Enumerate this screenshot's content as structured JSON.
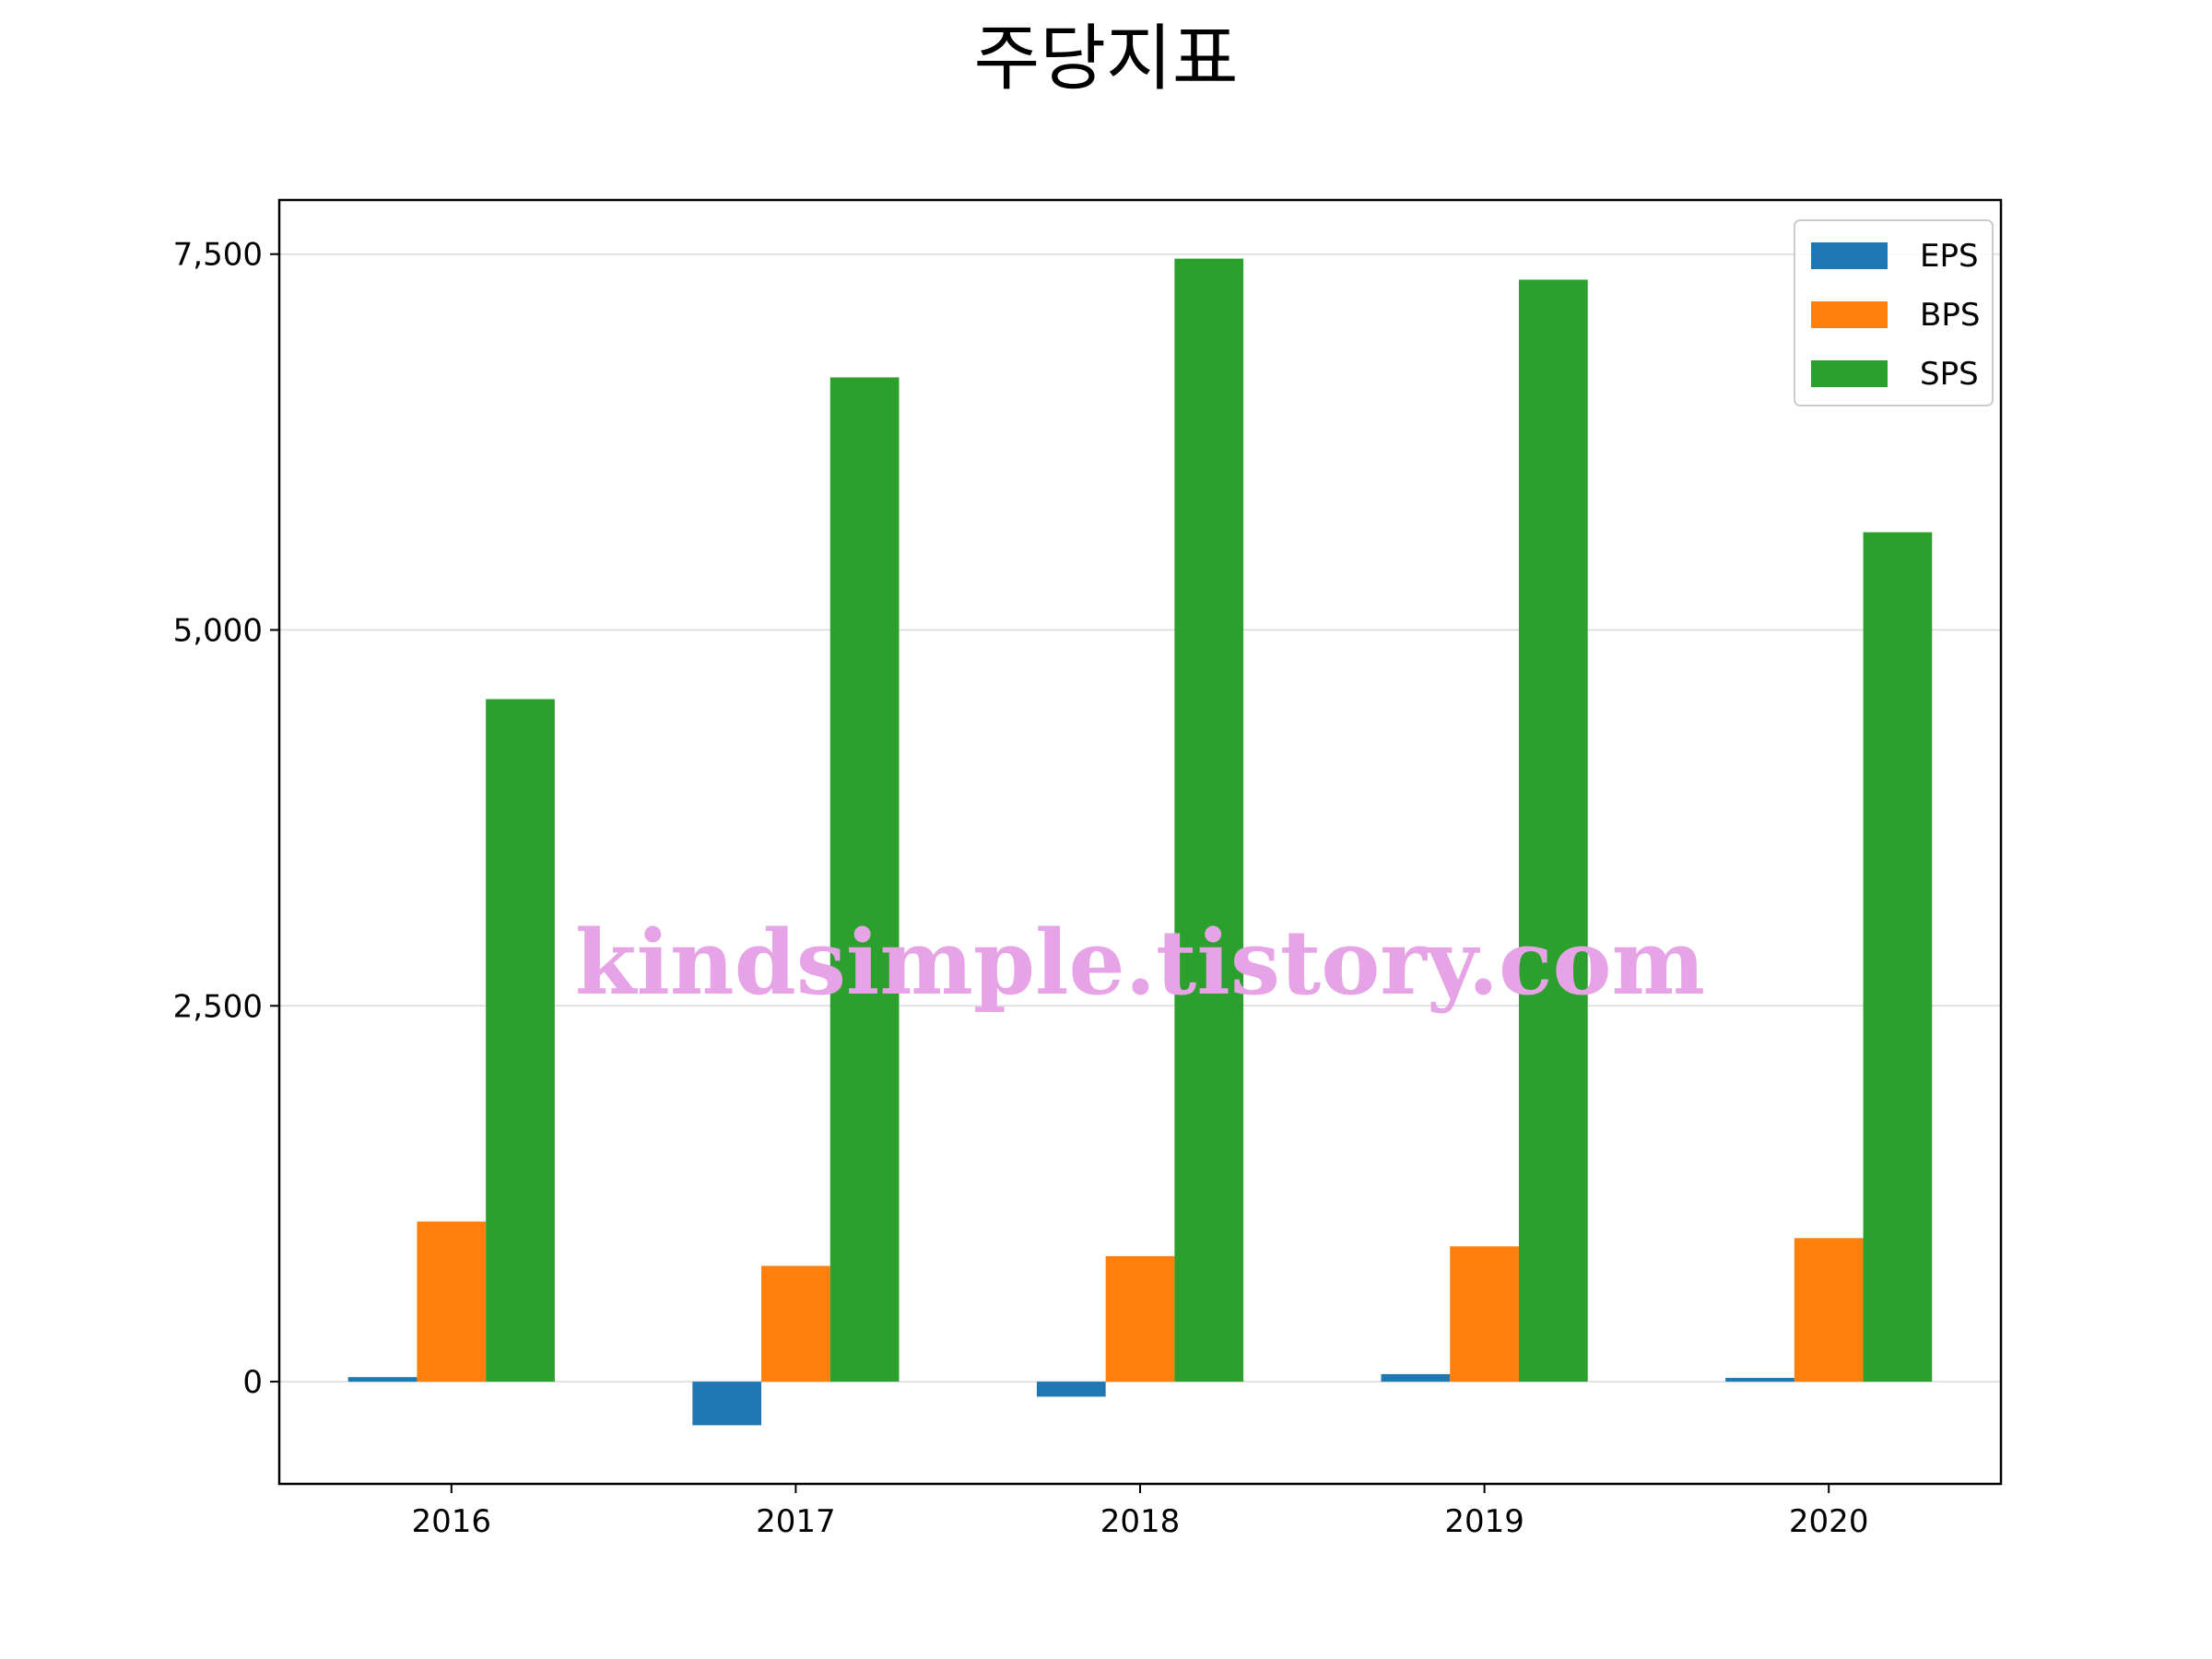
{
  "chart_data": {
    "type": "bar",
    "title": "주당지표",
    "xlabel": "",
    "ylabel": "",
    "categories": [
      "2016",
      "2017",
      "2018",
      "2019",
      "2020"
    ],
    "series": [
      {
        "name": "EPS",
        "color": "#1f77b4",
        "values": [
          30,
          -290,
          -100,
          50,
          25
        ]
      },
      {
        "name": "BPS",
        "color": "#ff7f0e",
        "values": [
          1065,
          770,
          835,
          900,
          955
        ]
      },
      {
        "name": "SPS",
        "color": "#2ca02c",
        "values": [
          4540,
          6680,
          7470,
          7330,
          5650
        ]
      }
    ],
    "ylim": [
      -680,
      7860
    ],
    "yticks": [
      0,
      2500,
      5000,
      7500
    ],
    "ytick_labels": [
      "0",
      "2,500",
      "5,000",
      "7,500"
    ],
    "grid": "horizontal",
    "legend_position": "top-right"
  },
  "watermark": "kindsimple.tistory.com"
}
